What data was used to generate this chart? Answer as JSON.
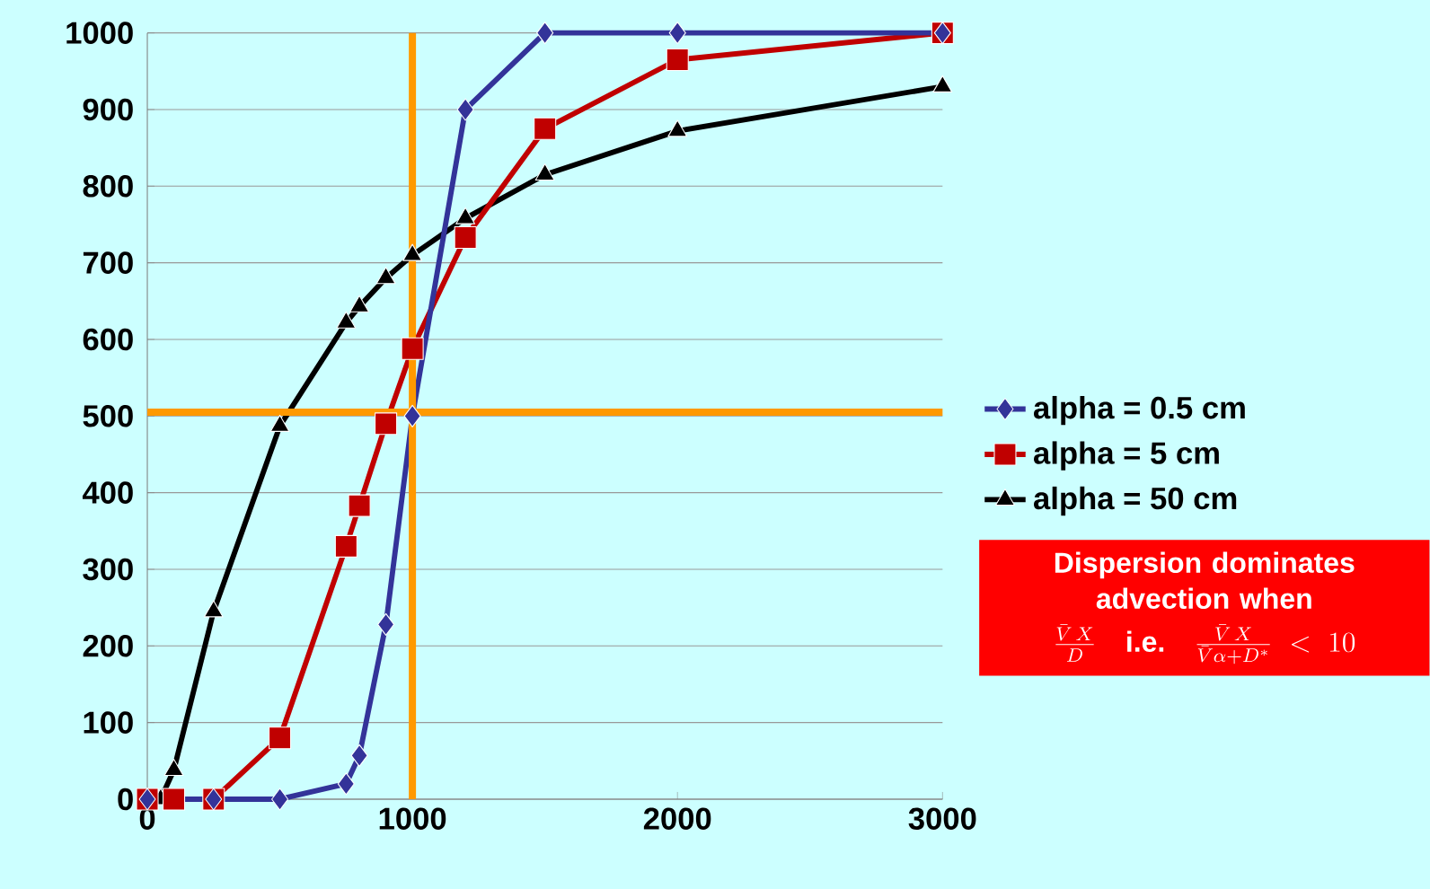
{
  "chart_data": {
    "type": "line",
    "xlim": [
      0,
      3000
    ],
    "ylim": [
      0,
      1000
    ],
    "xticks": [
      0,
      1000,
      2000,
      3000
    ],
    "yticks": [
      0,
      100,
      200,
      300,
      400,
      500,
      600,
      700,
      800,
      900,
      1000
    ],
    "grid": "y",
    "legend": "right",
    "series": [
      {
        "name": "alpha = 0.5 cm",
        "color": "#333399",
        "marker": "diamond",
        "x": [
          0,
          250,
          500,
          750,
          800,
          900,
          1000,
          1200,
          1500,
          2000,
          3000
        ],
        "values": [
          0,
          0,
          0,
          20,
          57,
          228,
          500,
          900,
          1000,
          1000,
          1000
        ]
      },
      {
        "name": "alpha = 5 cm",
        "color": "#c00000",
        "marker": "square",
        "x": [
          0,
          100,
          250,
          500,
          750,
          800,
          900,
          1000,
          1200,
          1500,
          2000,
          3000
        ],
        "values": [
          0,
          0,
          0,
          80,
          330,
          383,
          490,
          588,
          733,
          875,
          965,
          1000
        ]
      },
      {
        "name": "alpha = 50 cm",
        "color": "#000000",
        "marker": "triangle",
        "x": [
          0,
          50,
          100,
          250,
          500,
          750,
          800,
          900,
          1000,
          1200,
          1500,
          2000,
          3000
        ],
        "values": [
          0,
          0,
          38,
          245,
          487,
          622,
          643,
          680,
          710,
          758,
          815,
          872,
          930
        ]
      }
    ],
    "ref_lines": [
      {
        "axis": "x",
        "value": 1000,
        "color": "#ff9900"
      },
      {
        "axis": "y",
        "value": 505,
        "color": "#ff9900"
      }
    ],
    "annotations": [
      "Dispersion dominates advection when",
      "\\frac{\\bar{V}\\,X}{D}\\quad\\mbox{i.e.}\\quad\\frac{\\bar{V}\\,X}{\\bar{V}\\alpha + D^{*}} < 10"
    ]
  }
}
